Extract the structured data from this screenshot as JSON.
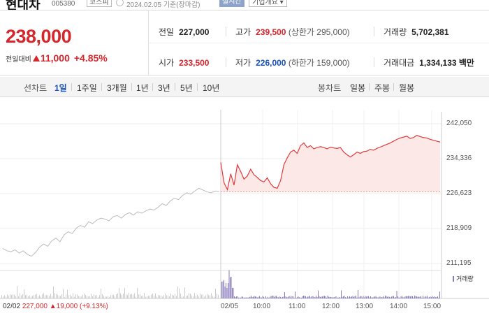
{
  "header": {
    "stock_name": "현대차",
    "stock_code": "005380",
    "market": "코스피",
    "date": "2024.02.05",
    "date_basis": "기준(장마감)",
    "realtime": "실시간",
    "company_info": "기업개요"
  },
  "price": {
    "current": "238,000",
    "change_label": "전일대비",
    "change_value": "11,000",
    "change_percent": "+4.85%"
  },
  "stats": {
    "prev_close_label": "전일",
    "prev_close": "227,000",
    "high_label": "고가",
    "high": "239,500",
    "upper_limit": "(상한가 295,000)",
    "volume_label": "거래량",
    "volume": "5,702,381",
    "open_label": "시가",
    "open": "233,500",
    "low_label": "저가",
    "low": "226,000",
    "lower_limit": "(하한가 159,000)",
    "amount_label": "거래대금",
    "amount": "1,334,133 백만"
  },
  "tabs": {
    "line_chart": "선차트",
    "periods": [
      "1일",
      "1주일",
      "3개월",
      "1년",
      "3년",
      "5년",
      "10년"
    ],
    "candle_chart": "봉차트",
    "candles": [
      "일봉",
      "주봉",
      "월봉"
    ]
  },
  "chart_data": {
    "type": "line",
    "y_ticks": [
      "242,050",
      "234,336",
      "226,623",
      "218,909",
      "211,195"
    ],
    "x_ticks": [
      "02/02",
      "02/05",
      "10:00",
      "11:00",
      "12:00",
      "13:00",
      "14:00",
      "15:00"
    ],
    "prev_close_line": 227000,
    "ylim": [
      211195,
      242050
    ],
    "volume_label": "거래량",
    "footer": {
      "date": "02/02",
      "price": "227,000",
      "change": "▲19,000",
      "pct": "(+9.13%)"
    },
    "colors": {
      "prev_day": "#bbbbbb",
      "today": "#e23a3a",
      "fill": "#fde8e8"
    },
    "prev_day_series": [
      214500,
      214000,
      213800,
      214200,
      213500,
      214000,
      213200,
      212800,
      213600,
      214800,
      215500,
      215000,
      216200,
      216800,
      216000,
      217500,
      218200,
      217800,
      219000,
      219600,
      219200,
      220400,
      220000,
      220800,
      221200,
      221000,
      220600,
      221500,
      221800,
      221200,
      222000,
      222400,
      221900,
      222600,
      222300,
      222800,
      223200,
      223000,
      223600,
      224400,
      224000,
      225000,
      225600,
      225300,
      226200,
      226800,
      226500,
      227200,
      227800,
      227400,
      227000,
      226800,
      227200,
      227000
    ],
    "today_series": [
      233500,
      229000,
      227500,
      231000,
      228500,
      233000,
      231500,
      229800,
      230500,
      232000,
      230800,
      230200,
      229500,
      229200,
      230100,
      228800,
      228000,
      227800,
      229500,
      233000,
      234500,
      235800,
      236200,
      235500,
      237200,
      237800,
      236800,
      237200,
      236500,
      236800,
      237000,
      236800,
      236500,
      236900,
      236700,
      236600,
      236800,
      235800,
      235200,
      234700,
      235200,
      235800,
      235500,
      235900,
      236000,
      236400,
      236200,
      236600,
      236900,
      237200,
      237500,
      237800,
      238200,
      238600,
      238900,
      239100,
      239300,
      238800,
      239000,
      239500,
      239200,
      239000,
      238900,
      238600,
      238400,
      238200,
      238000
    ]
  }
}
